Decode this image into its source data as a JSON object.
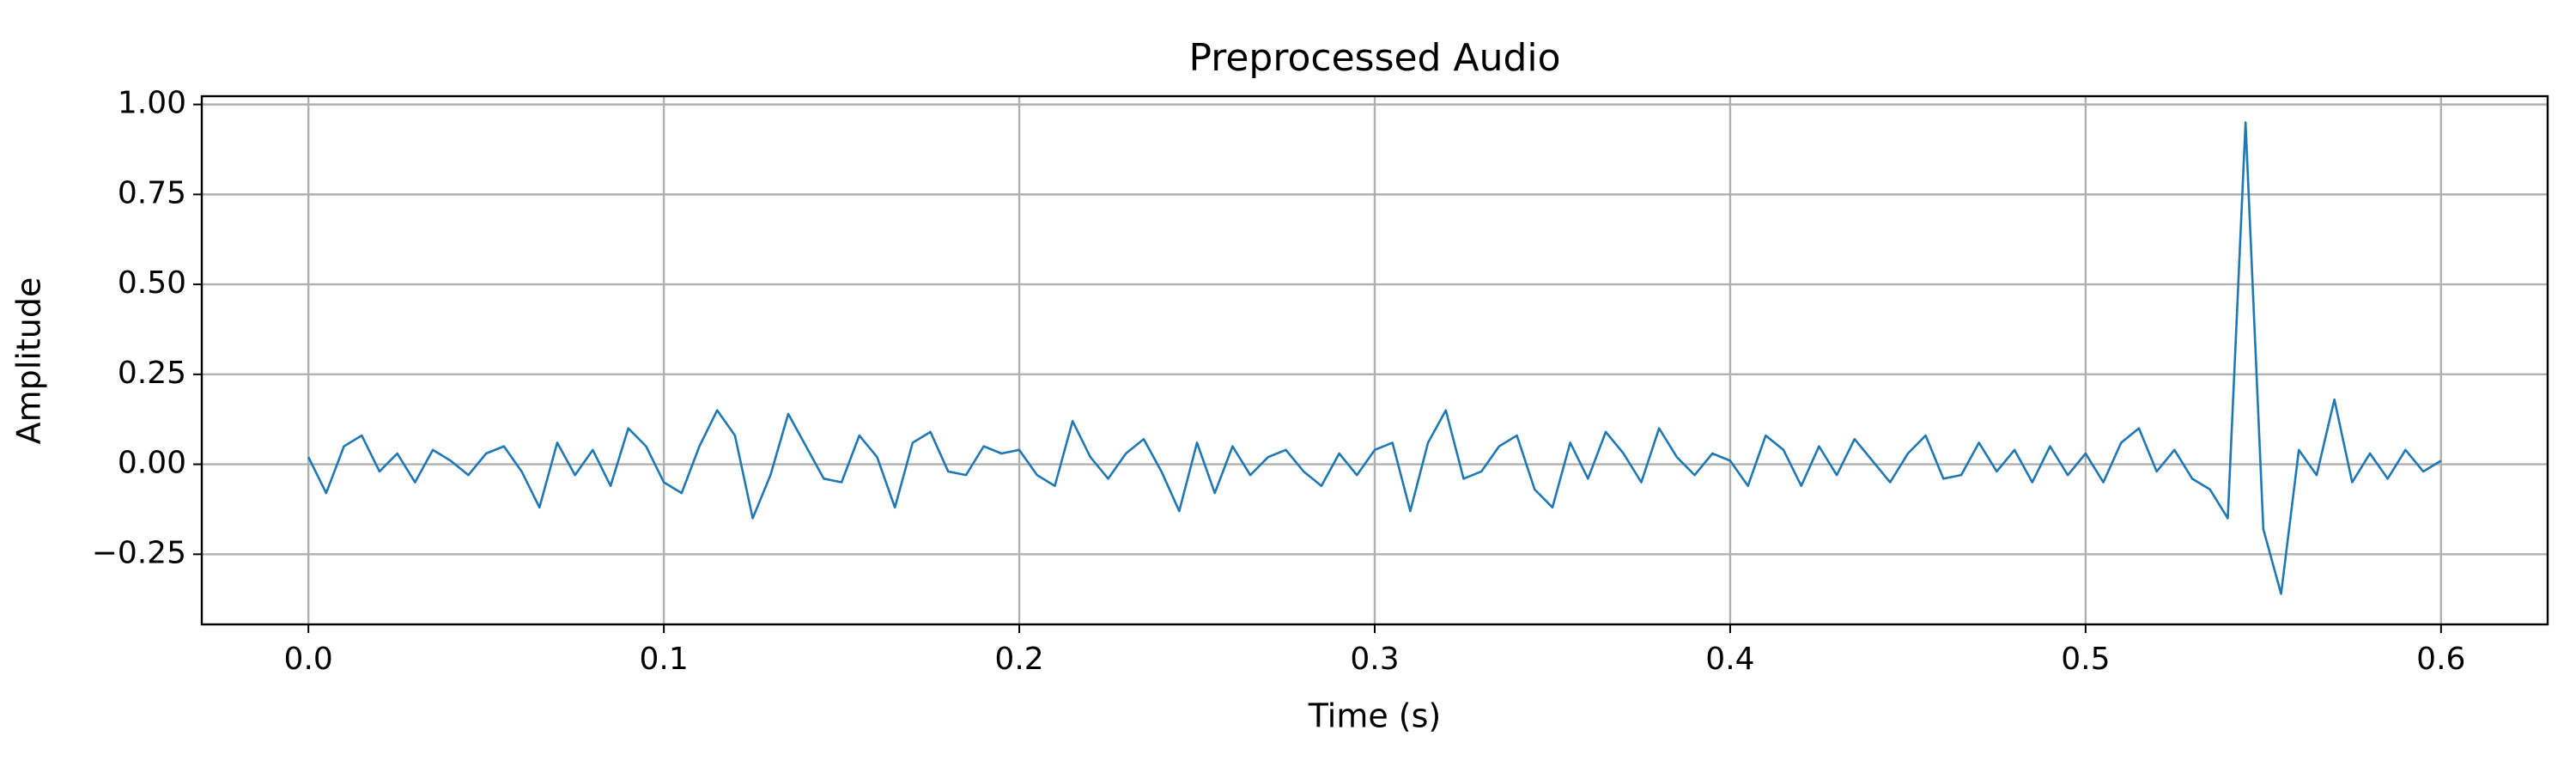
{
  "chart_data": {
    "type": "line",
    "title": "Preprocessed Audio",
    "x_label": "Time (s)",
    "y_label": "Amplitude",
    "x": [
      0.0,
      0.005,
      0.01,
      0.015,
      0.02,
      0.025,
      0.03,
      0.035,
      0.04,
      0.045,
      0.05,
      0.055,
      0.06,
      0.065,
      0.07,
      0.075,
      0.08,
      0.085,
      0.09,
      0.095,
      0.1,
      0.105,
      0.11,
      0.115,
      0.12,
      0.125,
      0.13,
      0.135,
      0.14,
      0.145,
      0.15,
      0.155,
      0.16,
      0.165,
      0.17,
      0.175,
      0.18,
      0.185,
      0.19,
      0.195,
      0.2,
      0.205,
      0.21,
      0.215,
      0.22,
      0.225,
      0.23,
      0.235,
      0.24,
      0.245,
      0.25,
      0.255,
      0.26,
      0.265,
      0.27,
      0.275,
      0.28,
      0.285,
      0.29,
      0.295,
      0.3,
      0.305,
      0.31,
      0.315,
      0.32,
      0.325,
      0.33,
      0.335,
      0.34,
      0.345,
      0.35,
      0.355,
      0.36,
      0.365,
      0.37,
      0.375,
      0.38,
      0.385,
      0.39,
      0.395,
      0.4,
      0.405,
      0.41,
      0.415,
      0.42,
      0.425,
      0.43,
      0.435,
      0.44,
      0.445,
      0.45,
      0.455,
      0.46,
      0.465,
      0.47,
      0.475,
      0.48,
      0.485,
      0.49,
      0.495,
      0.5,
      0.505,
      0.51,
      0.515,
      0.52,
      0.525,
      0.53,
      0.535,
      0.54,
      0.545,
      0.55,
      0.555,
      0.56,
      0.565,
      0.57,
      0.575,
      0.58,
      0.585,
      0.59,
      0.595,
      0.6
    ],
    "series": [
      {
        "color": "#1f77b4",
        "values": [
          0.02,
          -0.08,
          0.05,
          0.08,
          -0.02,
          0.03,
          -0.05,
          0.04,
          0.01,
          -0.03,
          0.03,
          0.05,
          -0.02,
          -0.12,
          0.06,
          -0.03,
          0.04,
          -0.06,
          0.1,
          0.05,
          -0.05,
          -0.08,
          0.05,
          0.15,
          0.08,
          -0.15,
          -0.03,
          0.14,
          0.05,
          -0.04,
          -0.05,
          0.08,
          0.02,
          -0.12,
          0.06,
          0.09,
          -0.02,
          -0.03,
          0.05,
          0.03,
          0.04,
          -0.03,
          -0.06,
          0.12,
          0.02,
          -0.04,
          0.03,
          0.07,
          -0.02,
          -0.13,
          0.06,
          -0.08,
          0.05,
          -0.03,
          0.02,
          0.04,
          -0.02,
          -0.06,
          0.03,
          -0.03,
          0.04,
          0.06,
          -0.13,
          0.06,
          0.15,
          -0.04,
          -0.02,
          0.05,
          0.08,
          -0.07,
          -0.12,
          0.06,
          -0.04,
          0.09,
          0.03,
          -0.05,
          0.1,
          0.02,
          -0.03,
          0.03,
          0.01,
          -0.06,
          0.08,
          0.04,
          -0.06,
          0.05,
          -0.03,
          0.07,
          0.01,
          -0.05,
          0.03,
          0.08,
          -0.04,
          -0.03,
          0.06,
          -0.02,
          0.04,
          -0.05,
          0.05,
          -0.03,
          0.03,
          -0.05,
          0.06,
          0.1,
          -0.02,
          0.04,
          -0.04,
          -0.07,
          -0.15,
          0.95,
          -0.18,
          -0.36,
          0.04,
          -0.03,
          0.18,
          -0.05,
          0.03,
          -0.04,
          0.04,
          -0.02,
          0.01
        ]
      }
    ],
    "xlim": [
      -0.03,
      0.63
    ],
    "ylim": [
      -0.445,
      1.023
    ],
    "xticks": [
      {
        "value": 0,
        "label": "0.0"
      },
      0.1,
      0.2,
      0.3,
      0.4,
      0.5,
      0.6
    ],
    "yticks": [
      {
        "value": -0.25,
        "label": "−0.25"
      },
      {
        "value": 0,
        "label": "0.00"
      },
      0.25,
      {
        "value": 0.5,
        "label": "0.50"
      },
      0.75,
      {
        "value": 1,
        "label": "1.00"
      }
    ],
    "grid": true
  }
}
